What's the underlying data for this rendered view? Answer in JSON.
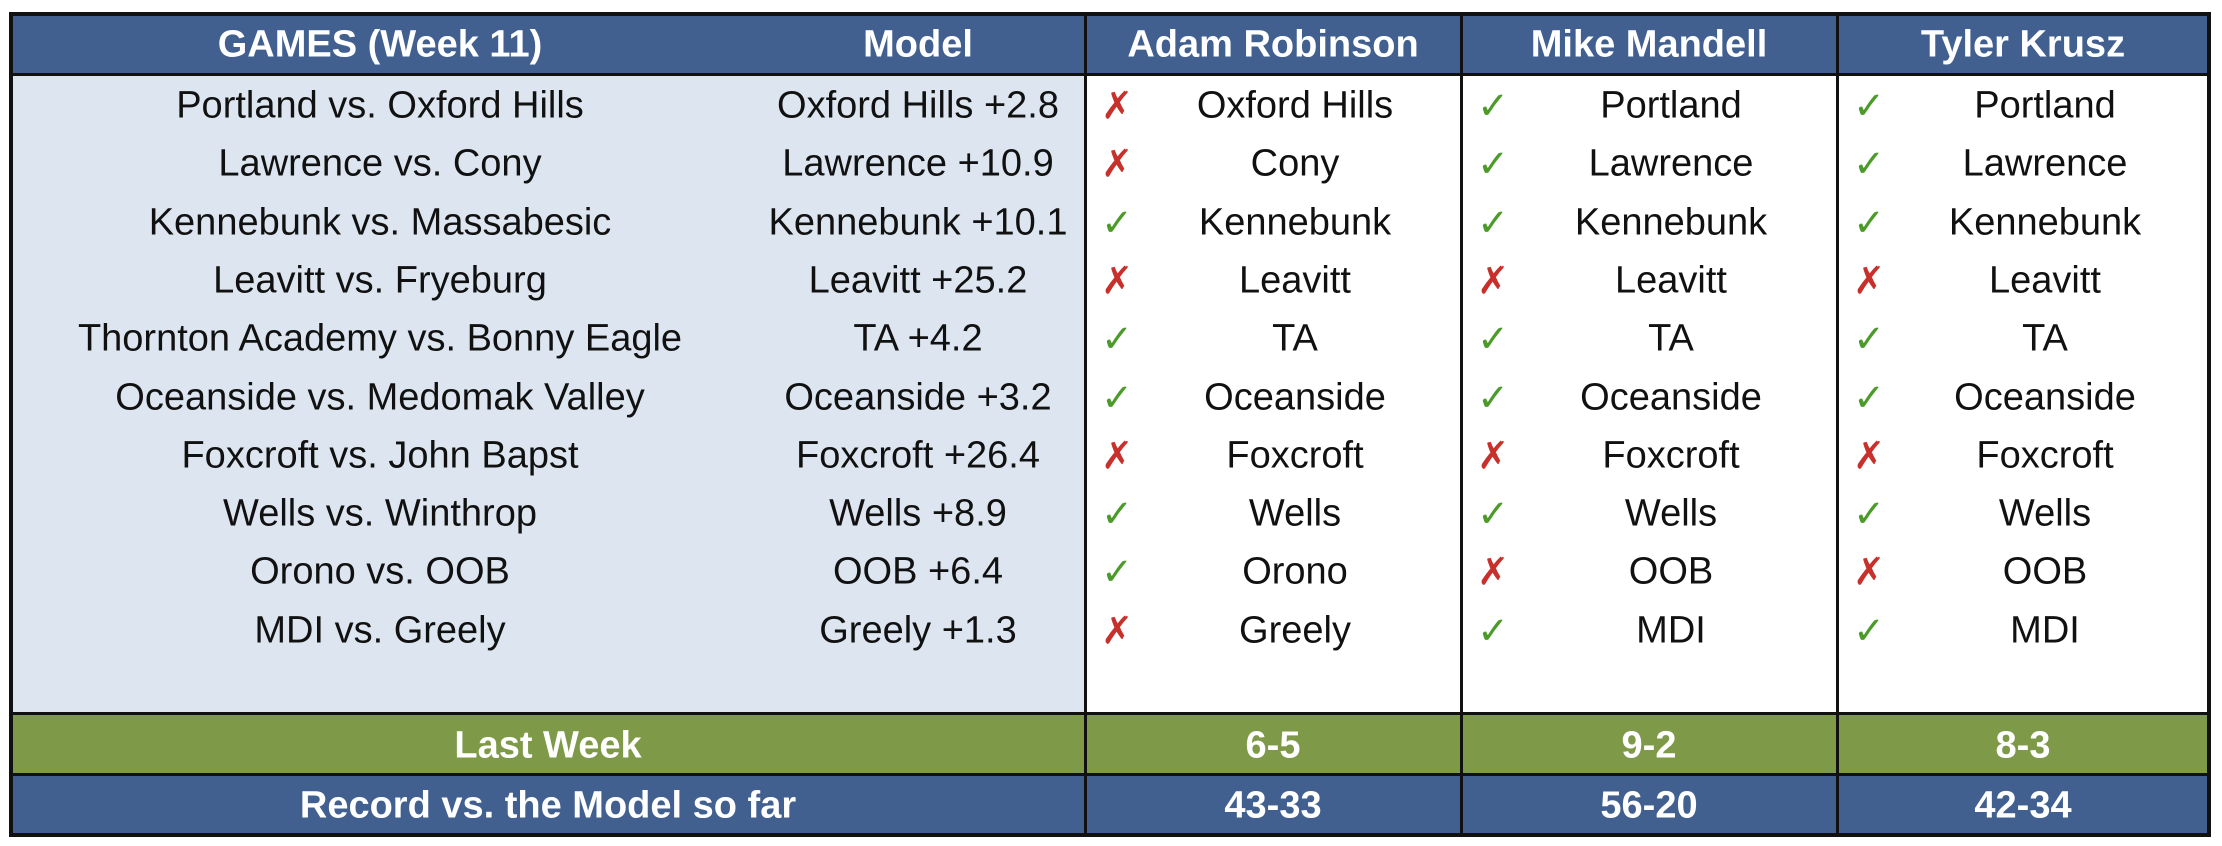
{
  "header": {
    "games": "GAMES (Week 11)",
    "model": "Model",
    "pickers": [
      "Adam Robinson",
      "Mike Mandell",
      "Tyler Krusz"
    ]
  },
  "rows": [
    {
      "game": "Portland vs. Oxford Hills",
      "model": "Oxford Hills +2.8",
      "picks": [
        {
          "mark": "✗",
          "correct": false,
          "team": "Oxford Hills"
        },
        {
          "mark": "✓",
          "correct": true,
          "team": "Portland"
        },
        {
          "mark": "✓",
          "correct": true,
          "team": "Portland"
        }
      ]
    },
    {
      "game": "Lawrence vs. Cony",
      "model": "Lawrence +10.9",
      "picks": [
        {
          "mark": "✗",
          "correct": false,
          "team": "Cony"
        },
        {
          "mark": "✓",
          "correct": true,
          "team": "Lawrence"
        },
        {
          "mark": "✓",
          "correct": true,
          "team": "Lawrence"
        }
      ]
    },
    {
      "game": "Kennebunk vs. Massabesic",
      "model": "Kennebunk +10.1",
      "picks": [
        {
          "mark": "✓",
          "correct": true,
          "team": "Kennebunk"
        },
        {
          "mark": "✓",
          "correct": true,
          "team": "Kennebunk"
        },
        {
          "mark": "✓",
          "correct": true,
          "team": "Kennebunk"
        }
      ]
    },
    {
      "game": "Leavitt vs. Fryeburg",
      "model": "Leavitt +25.2",
      "picks": [
        {
          "mark": "✗",
          "correct": false,
          "team": "Leavitt"
        },
        {
          "mark": "✗",
          "correct": false,
          "team": "Leavitt"
        },
        {
          "mark": "✗",
          "correct": false,
          "team": "Leavitt"
        }
      ]
    },
    {
      "game": "Thornton Academy vs. Bonny Eagle",
      "model": "TA +4.2",
      "picks": [
        {
          "mark": "✓",
          "correct": true,
          "team": "TA"
        },
        {
          "mark": "✓",
          "correct": true,
          "team": "TA"
        },
        {
          "mark": "✓",
          "correct": true,
          "team": "TA"
        }
      ]
    },
    {
      "game": "Oceanside vs. Medomak Valley",
      "model": "Oceanside +3.2",
      "picks": [
        {
          "mark": "✓",
          "correct": true,
          "team": "Oceanside"
        },
        {
          "mark": "✓",
          "correct": true,
          "team": "Oceanside"
        },
        {
          "mark": "✓",
          "correct": true,
          "team": "Oceanside"
        }
      ]
    },
    {
      "game": "Foxcroft vs. John Bapst",
      "model": "Foxcroft +26.4",
      "picks": [
        {
          "mark": "✗",
          "correct": false,
          "team": "Foxcroft"
        },
        {
          "mark": "✗",
          "correct": false,
          "team": "Foxcroft"
        },
        {
          "mark": "✗",
          "correct": false,
          "team": "Foxcroft"
        }
      ]
    },
    {
      "game": "Wells vs. Winthrop",
      "model": "Wells +8.9",
      "picks": [
        {
          "mark": "✓",
          "correct": true,
          "team": "Wells"
        },
        {
          "mark": "✓",
          "correct": true,
          "team": "Wells"
        },
        {
          "mark": "✓",
          "correct": true,
          "team": "Wells"
        }
      ]
    },
    {
      "game": "Orono vs. OOB",
      "model": "OOB +6.4",
      "picks": [
        {
          "mark": "✓",
          "correct": true,
          "team": "Orono"
        },
        {
          "mark": "✗",
          "correct": false,
          "team": "OOB"
        },
        {
          "mark": "✗",
          "correct": false,
          "team": "OOB"
        }
      ]
    },
    {
      "game": "MDI vs. Greely",
      "model": "Greely +1.3",
      "picks": [
        {
          "mark": "✗",
          "correct": false,
          "team": "Greely"
        },
        {
          "mark": "✓",
          "correct": true,
          "team": "MDI"
        },
        {
          "mark": "✓",
          "correct": true,
          "team": "MDI"
        }
      ]
    }
  ],
  "last_week": {
    "label": "Last Week",
    "values": [
      "6-5",
      "9-2",
      "8-3"
    ]
  },
  "record": {
    "label": "Record vs. the Model so far",
    "values": [
      "43-33",
      "56-20",
      "42-34"
    ]
  }
}
